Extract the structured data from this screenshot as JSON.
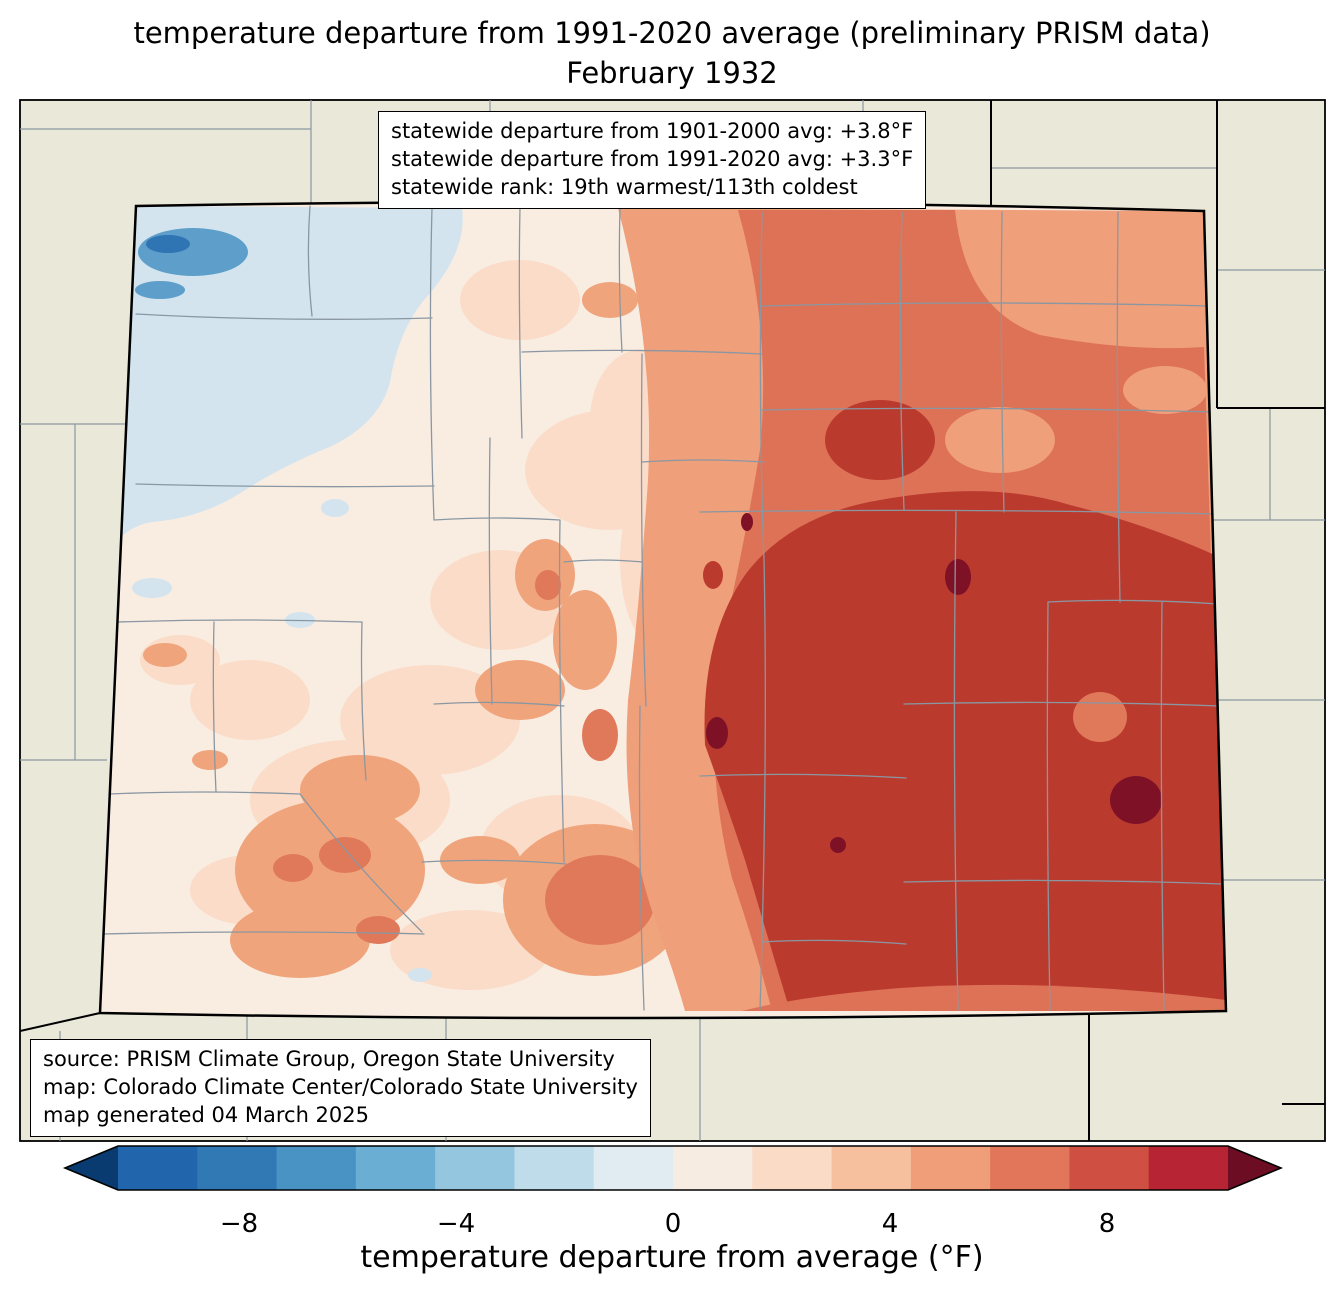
{
  "title": {
    "line1": "temperature departure from 1991-2020 average (preliminary PRISM data)",
    "line2": "February 1932"
  },
  "stats_box": {
    "lines": [
      "statewide departure from 1901-2000 avg: +3.8°F",
      "statewide departure from 1991-2020 avg: +3.3°F",
      "statewide rank: 19th warmest/113th coldest"
    ]
  },
  "source_box": {
    "lines": [
      "source: PRISM Climate Group, Oregon State University",
      "map: Colorado Climate Center/Colorado State University",
      "map generated 04 March 2025"
    ]
  },
  "colorbar": {
    "label": "temperature departure from average (°F)",
    "ticks": [
      "−8",
      "−4",
      "0",
      "4",
      "8"
    ],
    "segments": [
      "#2166ac",
      "#3079b5",
      "#4992c4",
      "#6aaed4",
      "#94c6df",
      "#bedcea",
      "#e0ecf2",
      "#f6ece2",
      "#fadbc6",
      "#f6bf9e",
      "#f09d79",
      "#e1765a",
      "#cf4f43",
      "#b72433"
    ],
    "left_arrow": "#0a3b70",
    "right_arrow": "#6d0d23"
  },
  "map": {
    "background_land": "#eae8d8",
    "state_fill_base": "#f9ede2",
    "border_color": "#000000",
    "county_line_color": "#8a97a2",
    "palette": {
      "pale_blue": "#d3e4ef",
      "mid_blue": "#5d9fca",
      "deep_blue": "#2f74b3",
      "pale_pink": "#fbdcc8",
      "salmon": "#f0a47c",
      "dark_salmon": "#e0795a",
      "light_red": "#ef9f7a",
      "mid_red": "#dd7257",
      "brick_red": "#bb3a2e",
      "dark_maroon": "#7f1127"
    }
  }
}
